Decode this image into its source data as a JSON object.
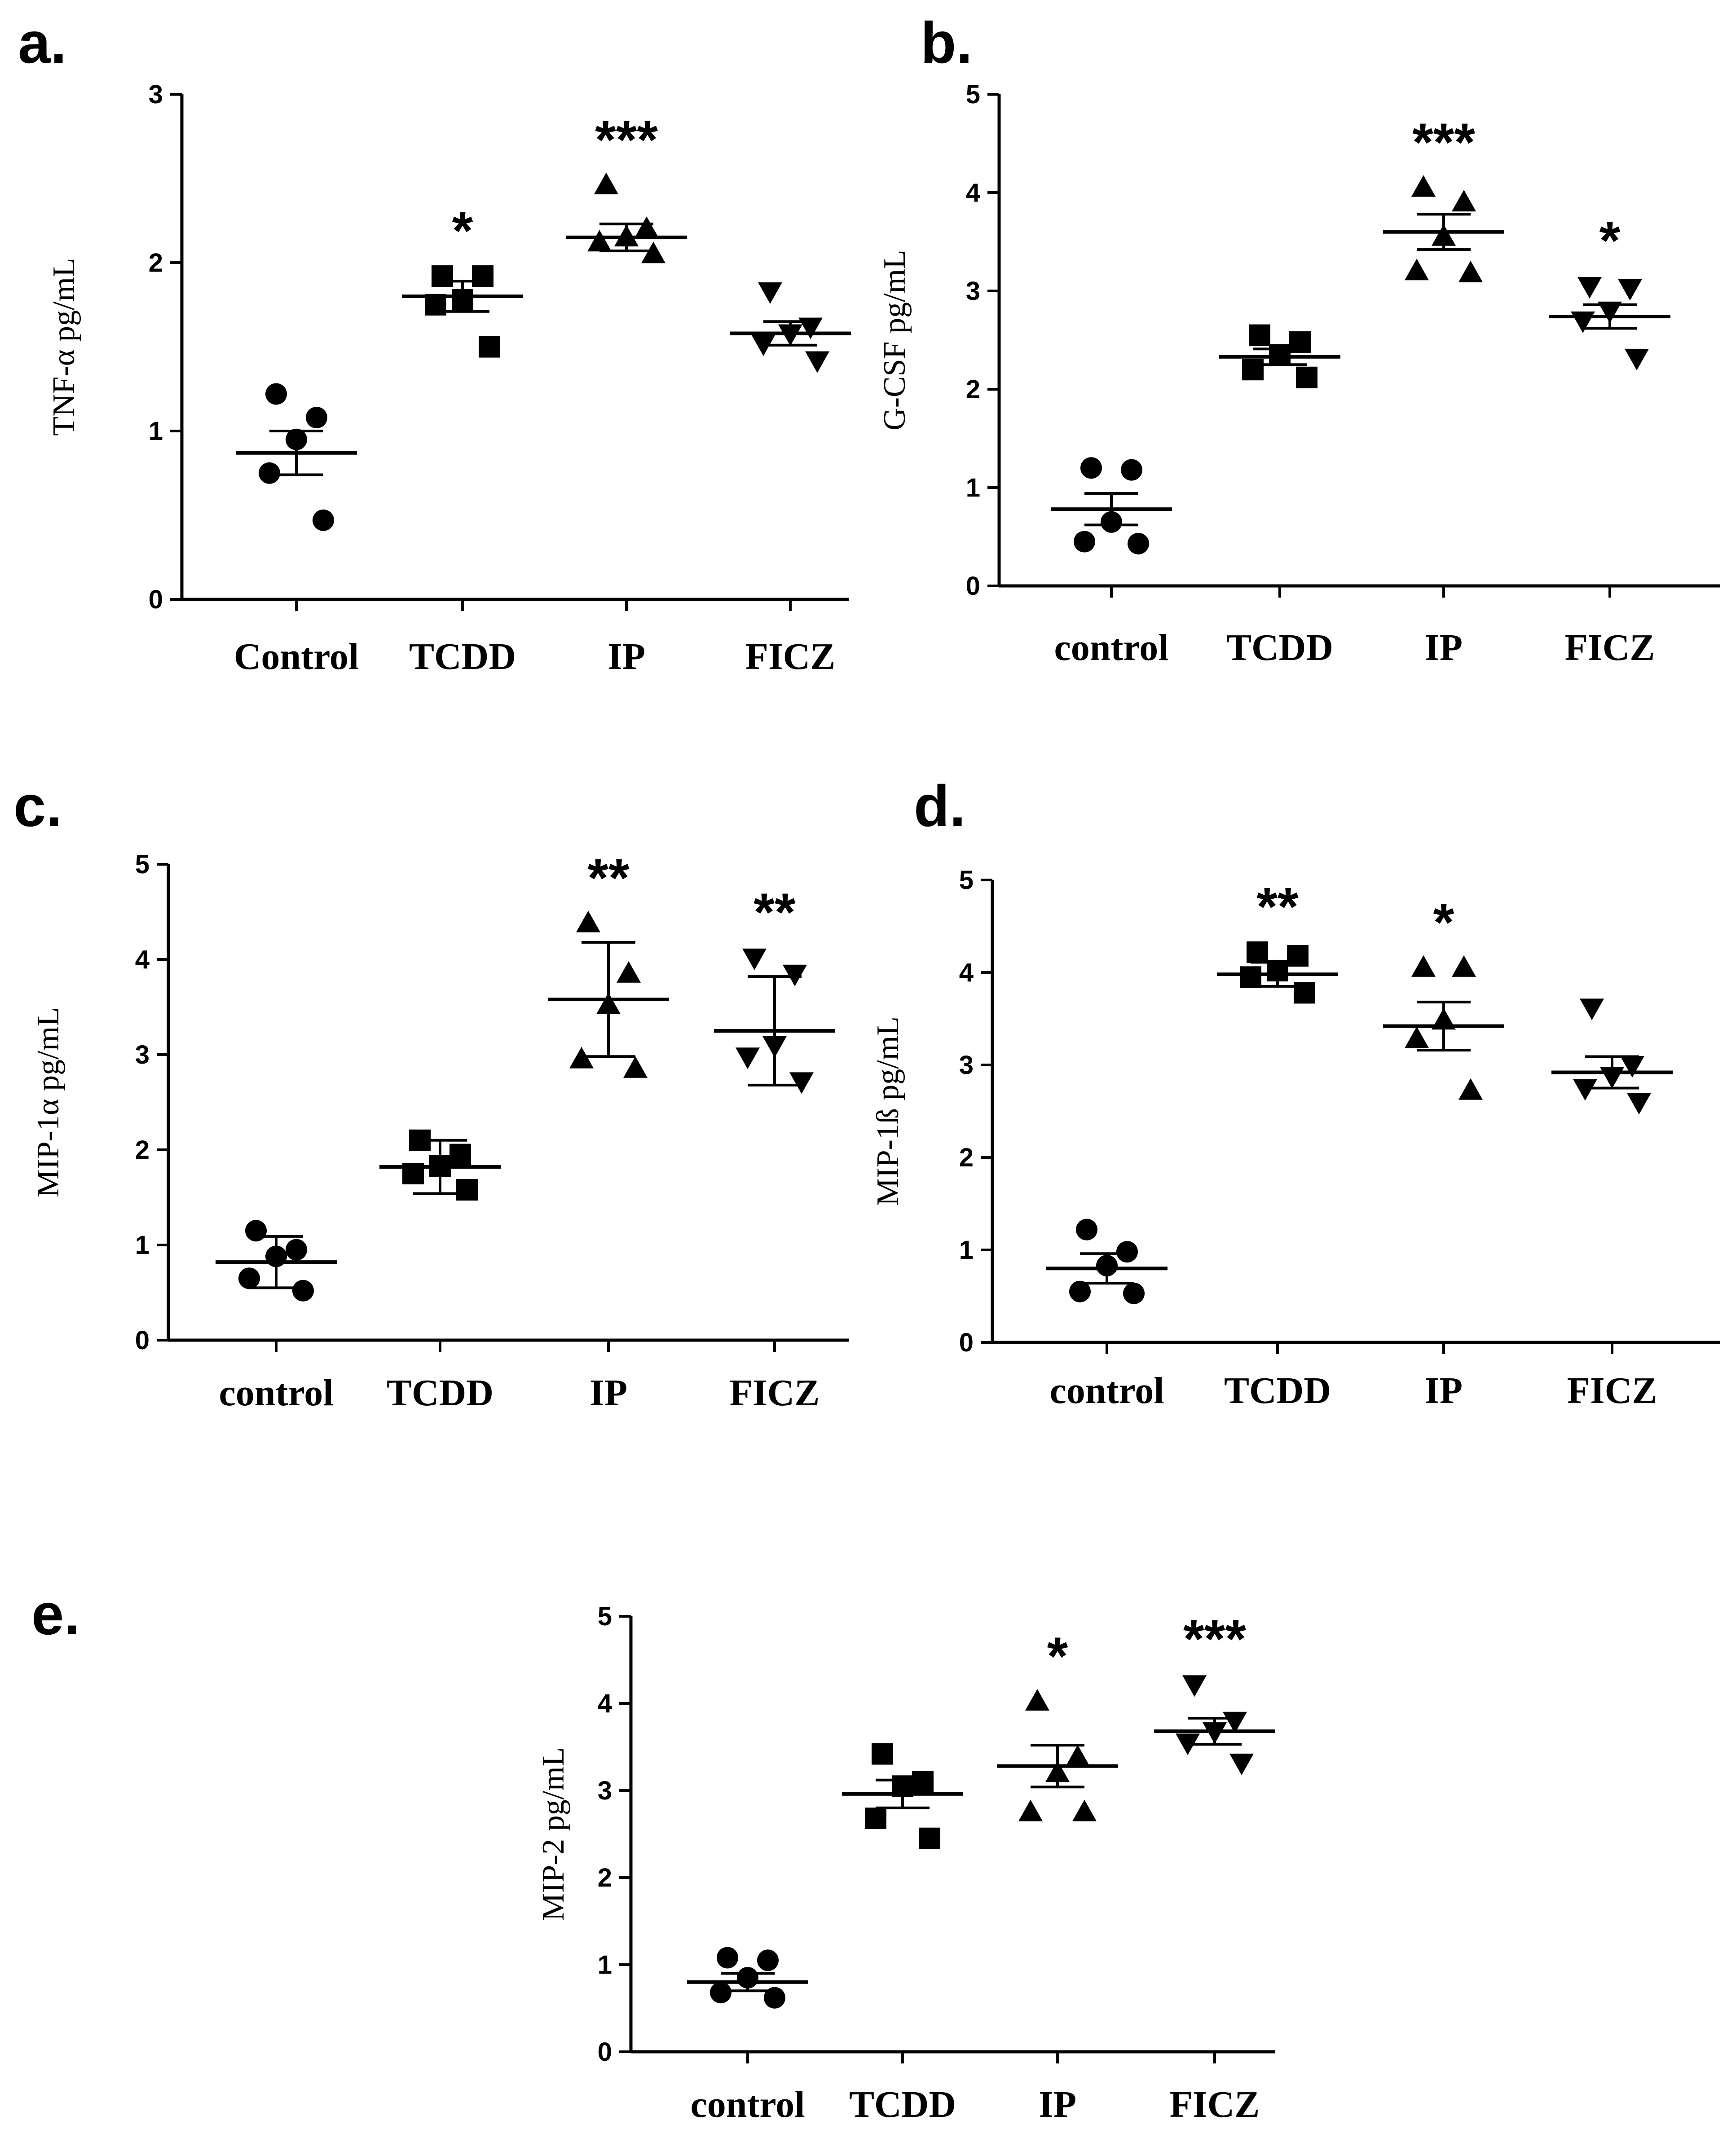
{
  "chart_data": [
    {
      "panel": "a.",
      "type": "scatter",
      "ylabel": "TNF-α pg/mL",
      "ylim": [
        0,
        3
      ],
      "yticks": [
        0,
        1,
        2,
        3
      ],
      "categories": [
        "Control",
        "TCDD",
        "IP",
        "FICZ"
      ],
      "markers": [
        "circle",
        "square",
        "triangle-up",
        "triangle-down"
      ],
      "points": [
        [
          1.22,
          1.08,
          0.95,
          0.75,
          0.47
        ],
        [
          1.92,
          1.92,
          1.78,
          1.75,
          1.5
        ],
        [
          2.46,
          2.2,
          2.15,
          2.12,
          2.05
        ],
        [
          1.83,
          1.62,
          1.58,
          1.52,
          1.42
        ]
      ],
      "means": [
        0.87,
        1.8,
        2.15,
        1.58
      ],
      "sem": [
        0.13,
        0.09,
        0.08,
        0.07
      ],
      "significance": [
        "",
        "*",
        "***",
        ""
      ]
    },
    {
      "panel": "b.",
      "type": "scatter",
      "ylabel": "G-CSF pg/mL",
      "ylim": [
        0,
        5
      ],
      "yticks": [
        0,
        1,
        2,
        3,
        4,
        5
      ],
      "categories": [
        "control",
        "TCDD",
        "IP",
        "FICZ"
      ],
      "markers": [
        "circle",
        "square",
        "triangle-up",
        "triangle-down"
      ],
      "points": [
        [
          1.2,
          1.18,
          0.65,
          0.45,
          0.43
        ],
        [
          2.55,
          2.48,
          2.35,
          2.2,
          2.12
        ],
        [
          4.05,
          3.9,
          3.55,
          3.2,
          3.18
        ],
        [
          3.05,
          3.03,
          2.8,
          2.7,
          2.32
        ]
      ],
      "means": [
        0.78,
        2.33,
        3.6,
        2.74
      ],
      "sem": [
        0.16,
        0.08,
        0.18,
        0.12
      ],
      "significance": [
        "",
        "",
        "***",
        "*"
      ]
    },
    {
      "panel": "c.",
      "type": "scatter",
      "ylabel": "MIP-1α pg/mL",
      "ylim": [
        0,
        5
      ],
      "yticks": [
        0,
        1,
        2,
        3,
        4,
        5
      ],
      "categories": [
        "control",
        "TCDD",
        "IP",
        "FICZ"
      ],
      "markers": [
        "circle",
        "square",
        "triangle-up",
        "triangle-down"
      ],
      "points": [
        [
          1.15,
          0.95,
          0.88,
          0.65,
          0.52
        ],
        [
          2.1,
          1.95,
          1.83,
          1.75,
          1.58
        ],
        [
          4.38,
          3.85,
          3.52,
          2.95,
          2.85
        ],
        [
          4.02,
          3.85,
          3.1,
          2.98,
          2.72
        ]
      ],
      "means": [
        0.82,
        1.82,
        3.58,
        3.25
      ],
      "sem": [
        0.27,
        0.28,
        0.6,
        0.57
      ],
      "significance": [
        "",
        "",
        "**",
        "**"
      ]
    },
    {
      "panel": "d.",
      "type": "scatter",
      "ylabel": "MIP-1ß pg/mL",
      "ylim": [
        0,
        5
      ],
      "yticks": [
        0,
        1,
        2,
        3,
        4,
        5
      ],
      "categories": [
        "control",
        "TCDD",
        "IP",
        "FICZ"
      ],
      "markers": [
        "circle",
        "square",
        "triangle-up",
        "triangle-down"
      ],
      "points": [
        [
          1.22,
          0.98,
          0.83,
          0.55,
          0.53
        ],
        [
          4.22,
          4.18,
          4.02,
          3.95,
          3.78
        ],
        [
          4.05,
          4.05,
          3.48,
          3.28,
          2.72
        ],
        [
          3.62,
          3.0,
          2.88,
          2.75,
          2.6
        ]
      ],
      "means": [
        0.8,
        3.98,
        3.42,
        2.92
      ],
      "sem": [
        0.16,
        0.13,
        0.26,
        0.17
      ],
      "significance": [
        "",
        "**",
        "*",
        ""
      ]
    },
    {
      "panel": "e.",
      "type": "scatter",
      "ylabel": "MIP-2 pg/mL",
      "ylim": [
        0,
        5
      ],
      "yticks": [
        0,
        1,
        2,
        3,
        4,
        5
      ],
      "categories": [
        "control",
        "TCDD",
        "IP",
        "FICZ"
      ],
      "markers": [
        "circle",
        "square",
        "triangle-up",
        "triangle-down"
      ],
      "points": [
        [
          1.08,
          1.05,
          0.85,
          0.68,
          0.62
        ],
        [
          3.42,
          3.1,
          3.05,
          2.68,
          2.45
        ],
        [
          4.02,
          3.38,
          3.2,
          2.75,
          2.75
        ],
        [
          4.22,
          3.8,
          3.68,
          3.55,
          3.32
        ]
      ],
      "means": [
        0.8,
        2.96,
        3.28,
        3.68
      ],
      "sem": [
        0.1,
        0.16,
        0.24,
        0.15
      ],
      "significance": [
        "",
        "",
        "*",
        "***"
      ]
    }
  ]
}
